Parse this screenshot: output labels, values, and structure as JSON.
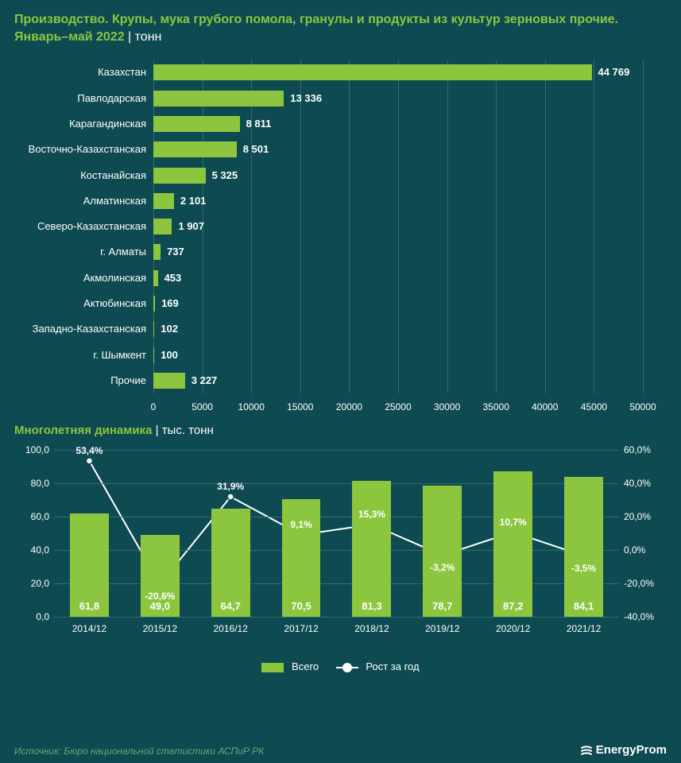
{
  "colors": {
    "background": "#0e4a52",
    "accent": "#8cc63f",
    "grid": "#376a70",
    "text": "#ffffff",
    "source_text": "#6fa27a"
  },
  "title": {
    "line1": "Производство. Крупы, мука грубого помола, гранулы и продукты из культур зерновых прочие.",
    "line2": "Январь–май 2022",
    "unit": "тонн"
  },
  "hbar": {
    "type": "bar-horizontal",
    "xlim": [
      0,
      50000
    ],
    "xtick_step": 5000,
    "bar_color": "#8cc63f",
    "grid_color": "#376a70",
    "tick_color": "#ffffff",
    "label_fontsize": 13,
    "rows": [
      {
        "label": "Казахстан",
        "value": 44769,
        "display": "44 769"
      },
      {
        "label": "Павлодарская",
        "value": 13336,
        "display": "13 336"
      },
      {
        "label": "Карагандинская",
        "value": 8811,
        "display": "8 811"
      },
      {
        "label": "Восточно-Казахстанская",
        "value": 8501,
        "display": "8 501"
      },
      {
        "label": "Костанайская",
        "value": 5325,
        "display": "5 325"
      },
      {
        "label": "Алматинская",
        "value": 2101,
        "display": "2 101"
      },
      {
        "label": "Северо-Казахстанская",
        "value": 1907,
        "display": "1 907"
      },
      {
        "label": "г. Алматы",
        "value": 737,
        "display": "737"
      },
      {
        "label": "Акмолинская",
        "value": 453,
        "display": "453"
      },
      {
        "label": "Актюбинская",
        "value": 169,
        "display": "169"
      },
      {
        "label": "Западно-Казахстанская",
        "value": 102,
        "display": "102"
      },
      {
        "label": "г. Шымкент",
        "value": 100,
        "display": "100"
      },
      {
        "label": "Прочие",
        "value": 3227,
        "display": "3 227"
      }
    ]
  },
  "combo_title": {
    "text": "Многолетняя динамика",
    "unit": "тыс. тонн"
  },
  "combo": {
    "type": "bar+line",
    "categories": [
      "2014/12",
      "2015/12",
      "2016/12",
      "2017/12",
      "2018/12",
      "2019/12",
      "2020/12",
      "2021/12"
    ],
    "bars": {
      "values": [
        61.8,
        49.0,
        64.7,
        70.5,
        81.3,
        78.7,
        87.2,
        84.1
      ],
      "labels": [
        "61,8",
        "49,0",
        "64,7",
        "70,5",
        "81,3",
        "78,7",
        "87,2",
        "84,1"
      ],
      "color": "#8cc63f",
      "ylim": [
        0,
        100
      ],
      "ytick_step": 20,
      "ytick_labels": [
        "0,0",
        "20,0",
        "40,0",
        "60,0",
        "80,0",
        "100,0"
      ],
      "bar_width_frac": 0.55
    },
    "line": {
      "values": [
        53.4,
        -20.6,
        31.9,
        9.1,
        15.3,
        -3.2,
        10.7,
        -3.5
      ],
      "labels": [
        "53,4%",
        "-20,6%",
        "31,9%",
        "9,1%",
        "15,3%",
        "-3,2%",
        "10,7%",
        "-3,5%"
      ],
      "color": "#ffffff",
      "marker_fill": "#ffffff",
      "marker_border": "#0e4a52",
      "marker_size": 8,
      "line_width": 2,
      "ylim": [
        -40,
        60
      ],
      "ytick_step": 20,
      "ytick_labels": [
        "-40,0%",
        "-20,0%",
        "0,0%",
        "20,0%",
        "40,0%",
        "60,0%"
      ]
    },
    "grid_color": "#376a70",
    "legend": {
      "bar": "Всего",
      "line": "Рост за год"
    }
  },
  "source": "Источник: Бюро национальной статистики АСПиР РК",
  "brand": "EnergyProm"
}
